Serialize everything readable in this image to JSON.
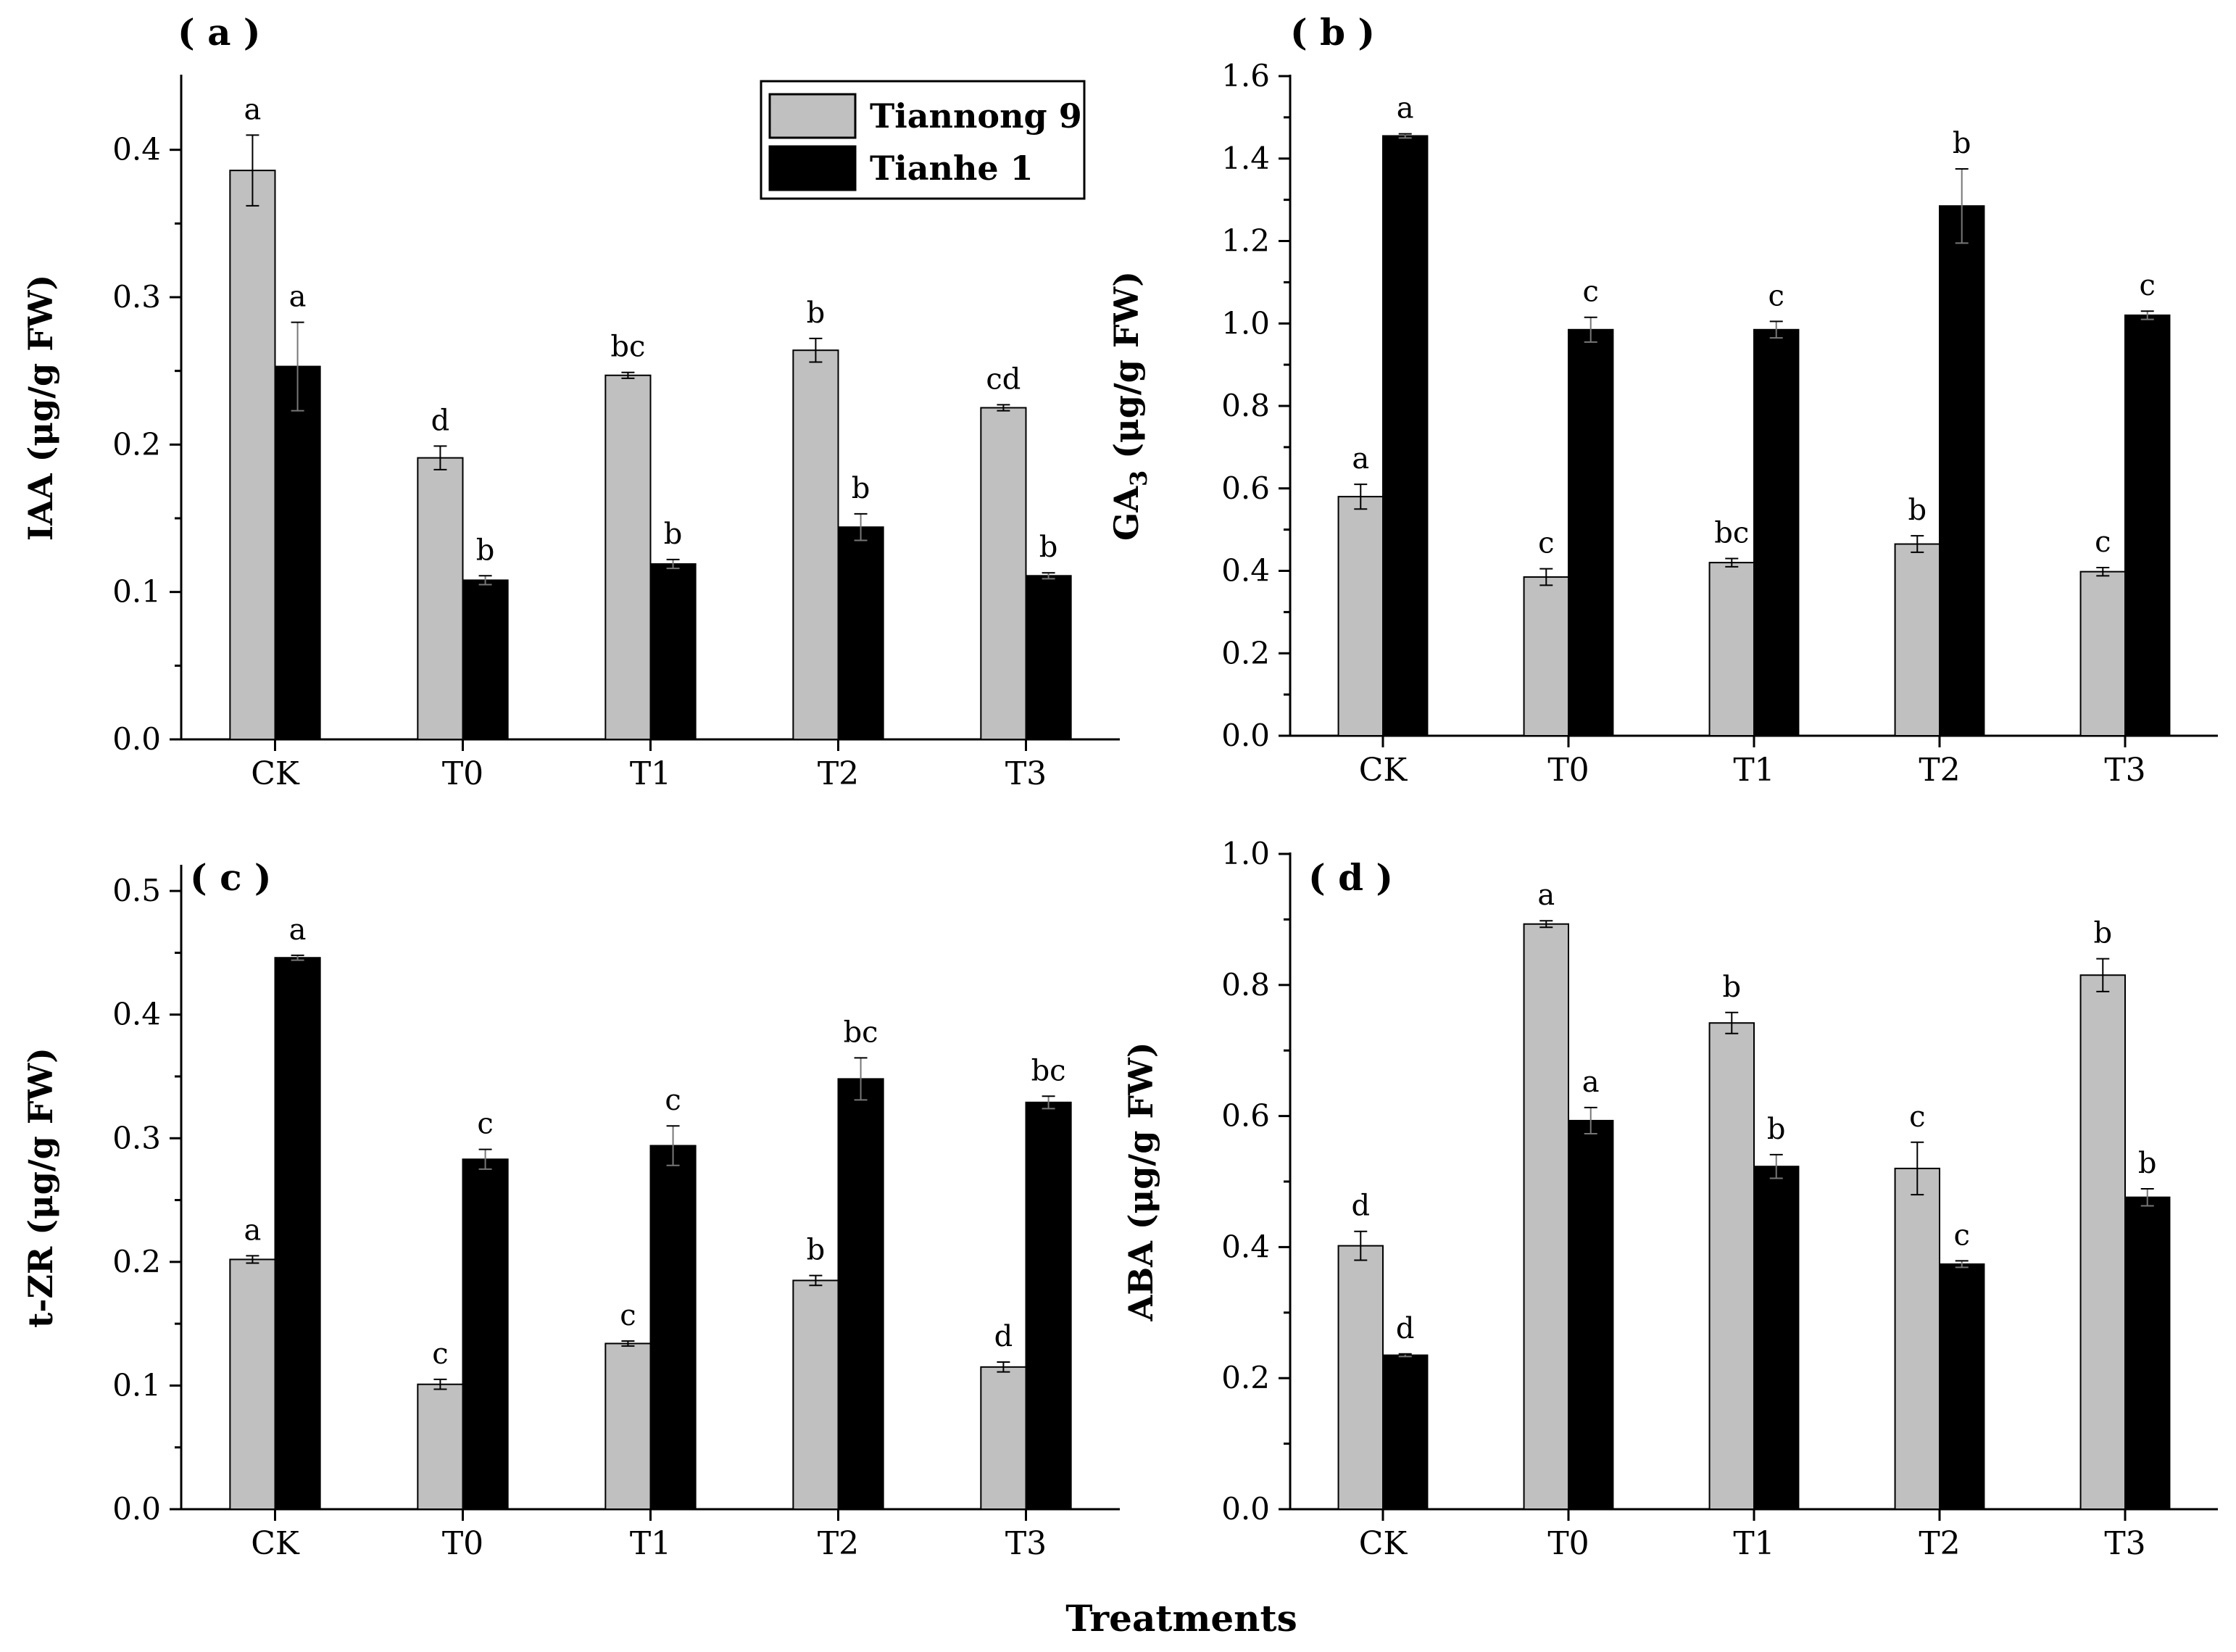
{
  "figure": {
    "xlabel": "Treatments",
    "colors": {
      "Tiannong 9": "#c0c0c0",
      "Tianhe 1": "#000000",
      "axis": "#000000"
    }
  },
  "legend": {
    "entries": [
      "Tiannong 9",
      "Tianhe 1"
    ],
    "location": "top-right of panel (a)"
  },
  "chart_data": [
    {
      "id": "a",
      "type": "bar",
      "title": "( a )",
      "ylabel": "IAA (μg/g FW)",
      "ylim": [
        0,
        0.45
      ],
      "yticks": [
        0.0,
        0.1,
        0.2,
        0.3,
        0.4
      ],
      "tick_decimals": 1,
      "categories": [
        "CK",
        "T0",
        "T1",
        "T2",
        "T3"
      ],
      "series": [
        {
          "name": "Tiannong 9",
          "values": [
            0.386,
            0.191,
            0.247,
            0.264,
            0.225
          ],
          "errors": [
            0.024,
            0.008,
            0.002,
            0.008,
            0.002
          ],
          "letters": [
            "a",
            "d",
            "bc",
            "b",
            "cd"
          ]
        },
        {
          "name": "Tianhe 1",
          "values": [
            0.253,
            0.108,
            0.119,
            0.144,
            0.111
          ],
          "errors": [
            0.03,
            0.003,
            0.003,
            0.009,
            0.002
          ],
          "letters": [
            "a",
            "b",
            "b",
            "b",
            "b"
          ]
        }
      ]
    },
    {
      "id": "b",
      "type": "bar",
      "title": "( b )",
      "ylabel": "GA",
      "ylabel_sub": "3",
      "ylabel_rest": " (μg/g FW)",
      "ylim": [
        0,
        1.6
      ],
      "yticks": [
        0.0,
        0.2,
        0.4,
        0.6,
        0.8,
        1.0,
        1.2,
        1.4,
        1.6
      ],
      "tick_decimals": 1,
      "categories": [
        "CK",
        "T0",
        "T1",
        "T2",
        "T3"
      ],
      "series": [
        {
          "name": "Tiannong 9",
          "values": [
            0.58,
            0.385,
            0.42,
            0.465,
            0.398
          ],
          "errors": [
            0.03,
            0.02,
            0.01,
            0.02,
            0.01
          ],
          "letters": [
            "a",
            "c",
            "bc",
            "b",
            "c"
          ]
        },
        {
          "name": "Tianhe 1",
          "values": [
            1.455,
            0.985,
            0.985,
            1.285,
            1.02
          ],
          "errors": [
            0.005,
            0.03,
            0.02,
            0.09,
            0.01
          ],
          "letters": [
            "a",
            "c",
            "c",
            "b",
            "c"
          ]
        }
      ]
    },
    {
      "id": "c",
      "type": "bar",
      "title": "( c )",
      "ylabel": "t-ZR (μg/g FW)",
      "ylim": [
        0,
        0.52
      ],
      "yticks": [
        0.0,
        0.1,
        0.2,
        0.3,
        0.4,
        0.5
      ],
      "tick_decimals": 1,
      "categories": [
        "CK",
        "T0",
        "T1",
        "T2",
        "T3"
      ],
      "series": [
        {
          "name": "Tiannong 9",
          "values": [
            0.202,
            0.101,
            0.134,
            0.185,
            0.115
          ],
          "errors": [
            0.003,
            0.004,
            0.002,
            0.004,
            0.004
          ],
          "letters": [
            "a",
            "c",
            "c",
            "b",
            "d"
          ]
        },
        {
          "name": "Tianhe 1",
          "values": [
            0.446,
            0.283,
            0.294,
            0.348,
            0.329
          ],
          "errors": [
            0.002,
            0.008,
            0.016,
            0.017,
            0.005
          ],
          "letters": [
            "a",
            "c",
            "c",
            "bc",
            "bc"
          ]
        }
      ]
    },
    {
      "id": "d",
      "type": "bar",
      "title": "( d )",
      "ylabel": "ABA (μg/g FW)",
      "ylim": [
        0,
        1.0
      ],
      "yticks": [
        0.0,
        0.2,
        0.4,
        0.6,
        0.8,
        1.0
      ],
      "tick_decimals": 1,
      "categories": [
        "CK",
        "T0",
        "T1",
        "T2",
        "T3"
      ],
      "series": [
        {
          "name": "Tiannong 9",
          "values": [
            0.402,
            0.893,
            0.742,
            0.52,
            0.815
          ],
          "errors": [
            0.022,
            0.005,
            0.016,
            0.04,
            0.025
          ],
          "letters": [
            "d",
            "a",
            "b",
            "c",
            "b"
          ]
        },
        {
          "name": "Tianhe 1",
          "values": [
            0.235,
            0.593,
            0.523,
            0.374,
            0.476
          ],
          "errors": [
            0.002,
            0.02,
            0.018,
            0.005,
            0.013
          ],
          "letters": [
            "d",
            "a",
            "b",
            "c",
            "b"
          ]
        }
      ]
    }
  ]
}
